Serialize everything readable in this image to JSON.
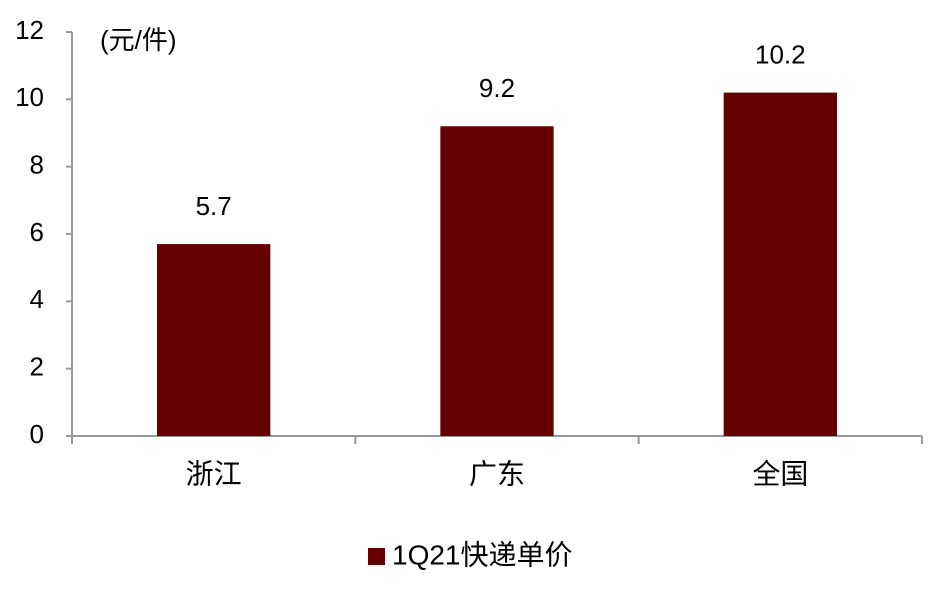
{
  "chart_data": {
    "type": "bar",
    "ylabel": "(元/件)",
    "categories": [
      "浙江",
      "广东",
      "全国"
    ],
    "series": [
      {
        "name": "1Q21快递单价",
        "color": "#660000",
        "values": [
          5.7,
          9.2,
          10.2
        ]
      }
    ],
    "ylim": [
      0,
      12
    ],
    "yticks": [
      0,
      2,
      4,
      6,
      8,
      10,
      12
    ],
    "legend": "bottom"
  }
}
